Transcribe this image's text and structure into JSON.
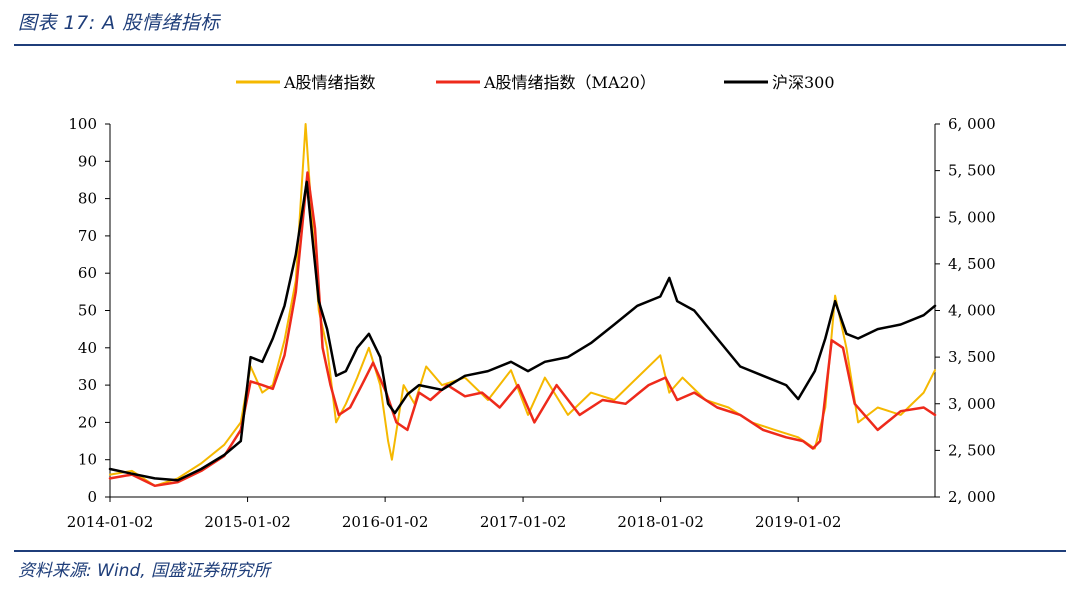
{
  "header": {
    "title": "图表 17:  A 股情绪指标"
  },
  "footer": {
    "source": "资料来源:  Wind,  国盛证券研究所"
  },
  "colors": {
    "sentiment": "#f5b800",
    "ma20": "#ee2a1b",
    "hs300": "#000000",
    "brand": "#1f3e7a"
  },
  "chart_data": {
    "type": "line",
    "legend": [
      "A股情绪指数",
      "A股情绪指数（MA20）",
      "沪深300"
    ],
    "legend_position": "top-center",
    "grid": false,
    "x_range": [
      "2014-01-02",
      "2019-12-31"
    ],
    "x_ticks": [
      "2014-01-02",
      "2015-01-02",
      "2016-01-02",
      "2017-01-02",
      "2018-01-02",
      "2019-01-02"
    ],
    "y_left": {
      "ylim": [
        0,
        100
      ],
      "ticks": [
        "0",
        "10",
        "20",
        "30",
        "40",
        "50",
        "60",
        "70",
        "80",
        "90",
        "100"
      ]
    },
    "y_right": {
      "ylim": [
        2000,
        6000
      ],
      "ticks": [
        "2, 000",
        "2, 500",
        "3, 000",
        "3, 500",
        "4, 000",
        "4, 500",
        "5, 000",
        "5, 500",
        "6, 000"
      ]
    },
    "series": [
      {
        "name": "A股情绪指数",
        "axis": "left",
        "x": [
          "2014-01-02",
          "2014-03-01",
          "2014-05-01",
          "2014-07-01",
          "2014-09-01",
          "2014-11-01",
          "2014-12-15",
          "2015-01-10",
          "2015-02-10",
          "2015-03-10",
          "2015-04-10",
          "2015-05-10",
          "2015-06-05",
          "2015-06-25",
          "2015-07-10",
          "2015-08-01",
          "2015-08-25",
          "2015-09-20",
          "2015-10-20",
          "2015-11-20",
          "2015-12-20",
          "2016-01-10",
          "2016-01-20",
          "2016-02-20",
          "2016-03-20",
          "2016-04-20",
          "2016-06-01",
          "2016-08-01",
          "2016-10-01",
          "2016-12-01",
          "2017-01-15",
          "2017-03-01",
          "2017-05-01",
          "2017-07-01",
          "2017-09-01",
          "2017-11-01",
          "2018-01-01",
          "2018-01-25",
          "2018-03-01",
          "2018-05-01",
          "2018-07-01",
          "2018-09-01",
          "2018-11-01",
          "2019-01-02",
          "2019-02-15",
          "2019-03-15",
          "2019-04-10",
          "2019-05-10",
          "2019-06-10",
          "2019-08-01",
          "2019-10-01",
          "2019-12-01",
          "2019-12-31"
        ],
        "values": [
          6,
          7,
          3,
          5,
          9,
          14,
          20,
          35,
          28,
          30,
          42,
          58,
          100,
          70,
          50,
          40,
          20,
          25,
          32,
          40,
          30,
          15,
          10,
          30,
          25,
          35,
          30,
          32,
          26,
          34,
          22,
          32,
          22,
          28,
          26,
          32,
          38,
          28,
          32,
          26,
          24,
          20,
          18,
          16,
          13,
          24,
          54,
          40,
          20,
          24,
          22,
          28,
          34
        ]
      },
      {
        "name": "A股情绪指数（MA20）",
        "axis": "left",
        "x": [
          "2014-01-02",
          "2014-03-01",
          "2014-05-01",
          "2014-07-01",
          "2014-09-01",
          "2014-11-01",
          "2014-12-15",
          "2015-01-10",
          "2015-02-10",
          "2015-03-10",
          "2015-04-10",
          "2015-05-10",
          "2015-06-10",
          "2015-06-30",
          "2015-07-20",
          "2015-08-10",
          "2015-09-01",
          "2015-10-01",
          "2015-11-01",
          "2015-12-01",
          "2016-01-05",
          "2016-02-01",
          "2016-03-01",
          "2016-04-01",
          "2016-05-01",
          "2016-06-15",
          "2016-08-01",
          "2016-09-15",
          "2016-11-01",
          "2016-12-20",
          "2017-02-01",
          "2017-04-01",
          "2017-06-01",
          "2017-08-01",
          "2017-10-01",
          "2017-12-01",
          "2018-01-15",
          "2018-02-15",
          "2018-04-01",
          "2018-06-01",
          "2018-08-01",
          "2018-10-01",
          "2018-12-01",
          "2019-01-15",
          "2019-02-10",
          "2019-03-01",
          "2019-04-01",
          "2019-05-01",
          "2019-06-01",
          "2019-08-01",
          "2019-10-01",
          "2019-12-01",
          "2019-12-31"
        ],
        "values": [
          5,
          6,
          3,
          4,
          7,
          11,
          18,
          31,
          30,
          29,
          38,
          55,
          87,
          72,
          40,
          30,
          22,
          24,
          30,
          36,
          28,
          20,
          18,
          28,
          26,
          30,
          27,
          28,
          24,
          30,
          20,
          30,
          22,
          26,
          25,
          30,
          32,
          26,
          28,
          24,
          22,
          18,
          16,
          15,
          13,
          15,
          42,
          40,
          25,
          18,
          23,
          24,
          22
        ]
      },
      {
        "name": "沪深300",
        "axis": "right",
        "x": [
          "2014-01-02",
          "2014-03-01",
          "2014-05-01",
          "2014-07-01",
          "2014-09-01",
          "2014-11-01",
          "2014-12-15",
          "2015-01-10",
          "2015-02-10",
          "2015-03-10",
          "2015-04-10",
          "2015-05-10",
          "2015-06-08",
          "2015-06-25",
          "2015-07-10",
          "2015-08-01",
          "2015-08-25",
          "2015-09-20",
          "2015-10-20",
          "2015-11-20",
          "2015-12-20",
          "2016-01-10",
          "2016-01-28",
          "2016-03-01",
          "2016-04-01",
          "2016-06-01",
          "2016-08-01",
          "2016-10-01",
          "2016-12-01",
          "2017-01-15",
          "2017-03-01",
          "2017-05-01",
          "2017-07-01",
          "2017-09-01",
          "2017-11-01",
          "2018-01-01",
          "2018-01-25",
          "2018-02-15",
          "2018-04-01",
          "2018-06-01",
          "2018-08-01",
          "2018-10-01",
          "2018-12-01",
          "2019-01-02",
          "2019-02-15",
          "2019-03-15",
          "2019-04-10",
          "2019-05-10",
          "2019-06-10",
          "2019-08-01",
          "2019-10-01",
          "2019-12-01",
          "2019-12-31"
        ],
        "values": [
          2300,
          2250,
          2200,
          2180,
          2300,
          2450,
          2600,
          3500,
          3450,
          3700,
          4050,
          4600,
          5380,
          4700,
          4100,
          3800,
          3300,
          3350,
          3600,
          3750,
          3500,
          3000,
          2900,
          3100,
          3200,
          3150,
          3300,
          3350,
          3450,
          3350,
          3450,
          3500,
          3650,
          3850,
          4050,
          4150,
          4350,
          4100,
          4000,
          3700,
          3400,
          3300,
          3200,
          3050,
          3350,
          3700,
          4100,
          3750,
          3700,
          3800,
          3850,
          3950,
          4050
        ]
      }
    ]
  }
}
